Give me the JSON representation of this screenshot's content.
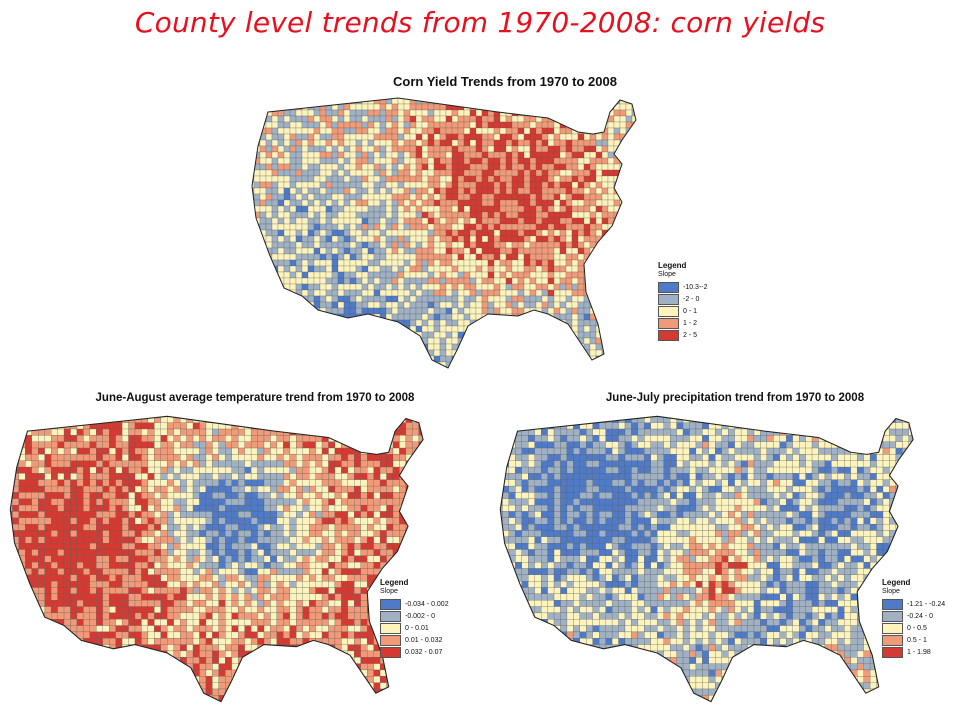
{
  "slide": {
    "title": "County level trends from 1970-2008: corn yields"
  },
  "maps": [
    {
      "id": "corn",
      "title": "Corn Yield Trends from 1970 to 2008",
      "legend": {
        "title": "Legend",
        "subtitle": "Slope",
        "classes": [
          {
            "label": "-10.3--2",
            "color": "#4f7ac7"
          },
          {
            "label": "-2 - 0",
            "color": "#9fb1c3"
          },
          {
            "label": "0 - 1",
            "color": "#fcf4bc"
          },
          {
            "label": "1 - 2",
            "color": "#f09a78"
          },
          {
            "label": "2 - 5",
            "color": "#d43a32"
          }
        ]
      }
    },
    {
      "id": "temperature",
      "title": "June-August average temperature trend from 1970 to 2008",
      "legend": {
        "title": "Legend",
        "subtitle": "Slope",
        "classes": [
          {
            "label": "-0.034 - 0.002",
            "color": "#4f7ac7"
          },
          {
            "label": "-0.002 - 0",
            "color": "#9fb1c3"
          },
          {
            "label": "0 - 0.01",
            "color": "#fcf4bc"
          },
          {
            "label": "0.01 - 0.032",
            "color": "#f09a78"
          },
          {
            "label": "0.032 - 0.07",
            "color": "#d43a32"
          }
        ]
      }
    },
    {
      "id": "precipitation",
      "title": "June-July precipitation trend from 1970 to 2008",
      "legend": {
        "title": "Legend",
        "subtitle": "Slope",
        "classes": [
          {
            "label": "-1.21 - -0.24",
            "color": "#4f7ac7"
          },
          {
            "label": "-0.24 - 0",
            "color": "#9fb1c3"
          },
          {
            "label": "0 - 0.5",
            "color": "#fcf4bc"
          },
          {
            "label": "0.5 - 1",
            "color": "#f09a78"
          },
          {
            "label": "1 - 1.98",
            "color": "#d43a32"
          }
        ]
      }
    }
  ]
}
